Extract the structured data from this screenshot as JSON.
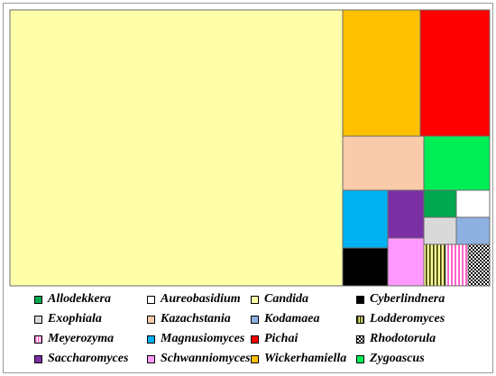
{
  "chart_data": {
    "type": "treemap",
    "title": "",
    "cells": [
      {
        "name": "Candida",
        "value": 1000,
        "color": "#FFFFAA",
        "pattern": "solid"
      },
      {
        "name": "Wickerhamiella",
        "value": 81,
        "color": "#FFC000",
        "pattern": "solid"
      },
      {
        "name": "Pichai",
        "value": 81,
        "color": "#FF0000",
        "pattern": "solid"
      },
      {
        "name": "Kazachstania",
        "value": 35,
        "color": "#F9CBAA",
        "pattern": "solid"
      },
      {
        "name": "Zygoascus",
        "value": 29,
        "color": "#00EE55",
        "pattern": "solid"
      },
      {
        "name": "Magnusiomyces",
        "value": 24,
        "color": "#00B0F0",
        "pattern": "solid"
      },
      {
        "name": "Saccharomyces",
        "value": 20,
        "color": "#7B2FA5",
        "pattern": "solid"
      },
      {
        "name": "Allodekkera",
        "value": 9,
        "color": "#00A84F",
        "pattern": "solid"
      },
      {
        "name": "Aureobasidium",
        "value": 9,
        "color": "#FFFFFF",
        "pattern": "solid"
      },
      {
        "name": "Exophiala",
        "value": 8,
        "color": "#D9D9D9",
        "pattern": "solid"
      },
      {
        "name": "Kodamaea",
        "value": 8,
        "color": "#8EB1E2",
        "pattern": "solid"
      },
      {
        "name": "Cyberlindnera",
        "value": 17,
        "color": "#000000",
        "pattern": "solid"
      },
      {
        "name": "Schwanniomyces",
        "value": 17,
        "color": "#FF99FF",
        "pattern": "solid"
      },
      {
        "name": "Lodderomyces",
        "value": 8,
        "color": "#FFFF99",
        "pattern": "vstripe-dark"
      },
      {
        "name": "Meyerozyma",
        "value": 8,
        "color": "#FF66CC",
        "pattern": "vstripe-pink"
      },
      {
        "name": "Rhodotorula",
        "value": 8,
        "color": "#FFFFFF",
        "pattern": "checker"
      }
    ]
  },
  "legend": {
    "items": [
      {
        "label": "Allodekkera",
        "color": "#00A84F",
        "pattern": "solid"
      },
      {
        "label": "Aureobasidium",
        "color": "#FFFFFF",
        "pattern": "solid"
      },
      {
        "label": "Candida",
        "color": "#FFFFAA",
        "pattern": "solid"
      },
      {
        "label": "Cyberlindnera",
        "color": "#000000",
        "pattern": "solid"
      },
      {
        "label": "Exophiala",
        "color": "#D9D9D9",
        "pattern": "solid"
      },
      {
        "label": "Kazachstania",
        "color": "#F9CBAA",
        "pattern": "solid"
      },
      {
        "label": "Kodamaea",
        "color": "#8EB1E2",
        "pattern": "solid"
      },
      {
        "label": "Lodderomyces",
        "color": "#FFFF99",
        "pattern": "vstripe-dark"
      },
      {
        "label": "Meyerozyma",
        "color": "#FF66CC",
        "pattern": "vstripe-pink"
      },
      {
        "label": "Magnusiomyces",
        "color": "#00B0F0",
        "pattern": "solid"
      },
      {
        "label": "Pichai",
        "color": "#FF0000",
        "pattern": "solid"
      },
      {
        "label": "Rhodotorula",
        "color": "#FFFFFF",
        "pattern": "checker"
      },
      {
        "label": "Saccharomyces",
        "color": "#7B2FA5",
        "pattern": "solid"
      },
      {
        "label": "Schwanniomyces",
        "color": "#FF99FF",
        "pattern": "solid"
      },
      {
        "label": "Wickerhamiella",
        "color": "#FFC000",
        "pattern": "solid"
      },
      {
        "label": "Zygoascus",
        "color": "#00EE55",
        "pattern": "solid"
      }
    ]
  }
}
